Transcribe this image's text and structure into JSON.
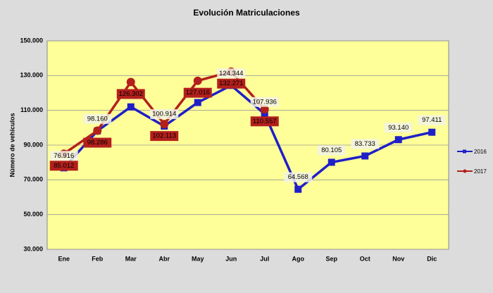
{
  "chart_data": {
    "type": "line",
    "title": "Evolución  Matriculaciones",
    "y_label": "Número de vehículos",
    "categories": [
      "Ene",
      "Feb",
      "Mar",
      "Abr",
      "May",
      "Jun",
      "Jul",
      "Ago",
      "Sep",
      "Oct",
      "Nov",
      "Dic"
    ],
    "series": [
      {
        "name": "2016",
        "color": "#1f1fc8",
        "marker": "square",
        "values": [
          76916,
          98160,
          112000,
          100914,
          114500,
          124344,
          107936,
          64568,
          80105,
          83733,
          93140,
          97411
        ],
        "value_labels": [
          "76.916",
          "98.160",
          null,
          "100.914",
          null,
          "124.344",
          "107.936",
          "64.568",
          "80.105",
          "83.733",
          "93.140",
          "97.411"
        ]
      },
      {
        "name": "2017",
        "color": "#b3201c",
        "marker": "circle",
        "values": [
          85012,
          98286,
          126302,
          102113,
          127016,
          132271,
          110557,
          null,
          null,
          null,
          null,
          null
        ],
        "value_labels": [
          "85.012",
          "98.286",
          "126.302",
          "102.113",
          "127.016",
          "132.271",
          "110.557",
          null,
          null,
          null,
          null,
          null
        ]
      }
    ],
    "ylim": [
      30000,
      150000
    ],
    "yticks": [
      {
        "value": 30000,
        "label": "30.000"
      },
      {
        "value": 50000,
        "label": "50.000"
      },
      {
        "value": 70000,
        "label": "70.000"
      },
      {
        "value": 90000,
        "label": "90.000"
      },
      {
        "value": 110000,
        "label": "110.000"
      },
      {
        "value": 130000,
        "label": "130.000"
      },
      {
        "value": 150000,
        "label": "150.000"
      }
    ],
    "grid": true,
    "legend": "right"
  }
}
